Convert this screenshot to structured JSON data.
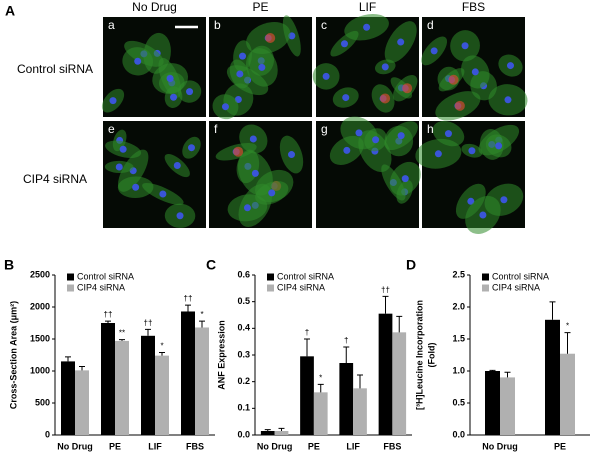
{
  "figure": {
    "panels": [
      "A",
      "B",
      "C",
      "D"
    ],
    "columns": [
      "No Drug",
      "PE",
      "LIF",
      "FBS"
    ],
    "rows": [
      "Control siRNA",
      "CIP4 siRNA"
    ],
    "image_letters": [
      "a",
      "b",
      "c",
      "d",
      "e",
      "f",
      "g",
      "h"
    ]
  },
  "chart_data": [
    {
      "type": "bar",
      "ylabel": [
        "Cross-Section Area (μm²)"
      ],
      "categories": [
        "No Drug",
        "PE",
        "LIF",
        "FBS"
      ],
      "series": [
        {
          "name": "Control siRNA",
          "color": "#000000",
          "values": [
            1150,
            1750,
            1550,
            1930
          ],
          "errors": [
            70,
            30,
            100,
            100
          ],
          "annotations": [
            null,
            "††",
            "††",
            "††"
          ]
        },
        {
          "name": "CIP4 siRNA",
          "color": "#b0b0b0",
          "values": [
            1010,
            1470,
            1240,
            1680
          ],
          "errors": [
            60,
            20,
            50,
            100
          ],
          "annotations": [
            null,
            "**",
            "*",
            "*"
          ]
        }
      ],
      "ylim": [
        0,
        2500
      ],
      "yticks": [
        0,
        500,
        1000,
        1500,
        2000,
        2500
      ],
      "legend": "upper left"
    },
    {
      "type": "bar",
      "ylabel": [
        "ANF Expression"
      ],
      "categories": [
        "No Drug",
        "PE",
        "LIF",
        "FBS"
      ],
      "series": [
        {
          "name": "Control siRNA",
          "color": "#000000",
          "values": [
            0.015,
            0.295,
            0.27,
            0.455
          ],
          "errors": [
            0.005,
            0.065,
            0.06,
            0.065
          ],
          "annotations": [
            null,
            "†",
            "†",
            "††"
          ]
        },
        {
          "name": "CIP4 siRNA",
          "color": "#b0b0b0",
          "values": [
            0.015,
            0.16,
            0.175,
            0.385
          ],
          "errors": [
            0.01,
            0.03,
            0.05,
            0.06
          ],
          "annotations": [
            null,
            "*",
            null,
            null
          ]
        }
      ],
      "ylim": [
        0,
        0.6
      ],
      "yticks": [
        {
          "value": 0,
          "label": "0.0"
        },
        0.1,
        0.2,
        0.3,
        0.4,
        0.5,
        0.6
      ],
      "legend": "upper left"
    },
    {
      "type": "bar",
      "ylabel": [
        "[³H]Leucine Incorporation",
        "(Fold)"
      ],
      "categories": [
        "No Drug",
        "PE"
      ],
      "series": [
        {
          "name": "Control siRNA",
          "color": "#000000",
          "values": [
            1.0,
            1.8
          ],
          "errors": [
            0.01,
            0.28
          ],
          "annotations": [
            null,
            null
          ]
        },
        {
          "name": "CIP4 siRNA",
          "color": "#b0b0b0",
          "values": [
            0.9,
            1.27
          ],
          "errors": [
            0.08,
            0.33
          ],
          "annotations": [
            null,
            "*"
          ]
        }
      ],
      "ylim": [
        0,
        2.5
      ],
      "yticks": [
        {
          "value": 0,
          "label": "0.0"
        },
        0.5,
        {
          "value": 1,
          "label": "1.0"
        },
        1.5,
        {
          "value": 2,
          "label": "2.0"
        },
        2.5
      ],
      "legend": "upper left"
    }
  ]
}
